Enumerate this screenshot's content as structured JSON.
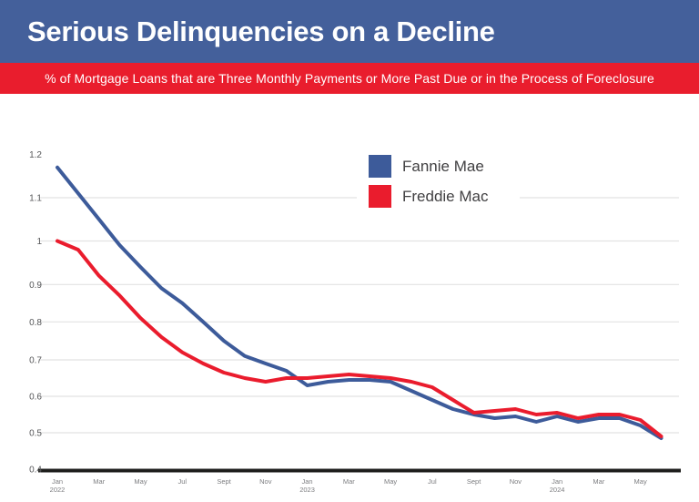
{
  "header": {
    "title": "Serious Delinquencies on a Decline",
    "subtitle": "% of Mortgage Loans that are Three Monthly Payments or More Past Due or in the Process of Foreclosure"
  },
  "colors": {
    "banner_blue": "#44609b",
    "banner_red": "#e91d2d",
    "fannie_blue": "#3d5b9a",
    "freddie_red": "#ea1c2d",
    "gridline": "#e2e2e2",
    "axis_black": "#1e1e1c",
    "y_label_gray": "#58595b",
    "x_label_gray": "#7d7e81",
    "legend_text": "#414042"
  },
  "legend": [
    {
      "label": "Fannie Mae",
      "color": "#3d5b9a"
    },
    {
      "label": "Freddie Mac",
      "color": "#ea1c2d"
    }
  ],
  "chart_data": {
    "type": "line",
    "title": "Serious Delinquencies on a Decline",
    "subtitle": "% of Mortgage Loans that are Three Monthly Payments or More Past Due or in the Process of Foreclosure",
    "ylabel": "",
    "xlabel": "",
    "ylim": [
      0.4,
      1.2
    ],
    "grid": true,
    "legend_position": "top-center",
    "y_ticks": [
      {
        "label": "1.2",
        "value": 1.2
      },
      {
        "label": "1.1",
        "value": 1.1
      },
      {
        "label": "1",
        "value": 1.0
      },
      {
        "label": "0.9",
        "value": 0.9
      },
      {
        "label": "0.8",
        "value": 0.8
      },
      {
        "label": "0.7",
        "value": 0.7
      },
      {
        "label": "0.6",
        "value": 0.6
      },
      {
        "label": "0.5",
        "value": 0.5
      },
      {
        "label": "0.4",
        "value": 0.4
      }
    ],
    "x_ticks": [
      {
        "month_index": 0,
        "label": "Jan",
        "year": "2022"
      },
      {
        "month_index": 2,
        "label": "Mar"
      },
      {
        "month_index": 4,
        "label": "May"
      },
      {
        "month_index": 6,
        "label": "Jul"
      },
      {
        "month_index": 8,
        "label": "Sept"
      },
      {
        "month_index": 10,
        "label": "Nov"
      },
      {
        "month_index": 12,
        "label": "Jan",
        "year": "2023"
      },
      {
        "month_index": 14,
        "label": "Mar"
      },
      {
        "month_index": 16,
        "label": "May"
      },
      {
        "month_index": 18,
        "label": "Jul"
      },
      {
        "month_index": 20,
        "label": "Sept"
      },
      {
        "month_index": 22,
        "label": "Nov"
      },
      {
        "month_index": 24,
        "label": "Jan",
        "year": "2024"
      },
      {
        "month_index": 26,
        "label": "Mar"
      },
      {
        "month_index": 28,
        "label": "May"
      }
    ],
    "x": [
      "2022-01",
      "2022-02",
      "2022-03",
      "2022-04",
      "2022-05",
      "2022-06",
      "2022-07",
      "2022-08",
      "2022-09",
      "2022-10",
      "2022-11",
      "2022-12",
      "2023-01",
      "2023-02",
      "2023-03",
      "2023-04",
      "2023-05",
      "2023-06",
      "2023-07",
      "2023-08",
      "2023-09",
      "2023-10",
      "2023-11",
      "2023-12",
      "2024-01",
      "2024-02",
      "2024-03",
      "2024-04",
      "2024-05",
      "2024-06"
    ],
    "series": [
      {
        "name": "Fannie Mae",
        "color": "#3d5b9a",
        "values": [
          1.17,
          1.11,
          1.05,
          0.99,
          0.94,
          0.89,
          0.85,
          0.8,
          0.75,
          0.71,
          0.69,
          0.67,
          0.63,
          0.64,
          0.645,
          0.645,
          0.64,
          0.615,
          0.59,
          0.565,
          0.55,
          0.54,
          0.545,
          0.53,
          0.545,
          0.53,
          0.54,
          0.54,
          0.52,
          0.485
        ]
      },
      {
        "name": "Freddie Mac",
        "color": "#ea1c2d",
        "values": [
          1.0,
          0.98,
          0.92,
          0.87,
          0.81,
          0.76,
          0.72,
          0.69,
          0.665,
          0.65,
          0.64,
          0.65,
          0.65,
          0.655,
          0.66,
          0.655,
          0.65,
          0.64,
          0.625,
          0.59,
          0.555,
          0.56,
          0.565,
          0.55,
          0.555,
          0.54,
          0.55,
          0.55,
          0.535,
          0.49
        ]
      }
    ]
  }
}
